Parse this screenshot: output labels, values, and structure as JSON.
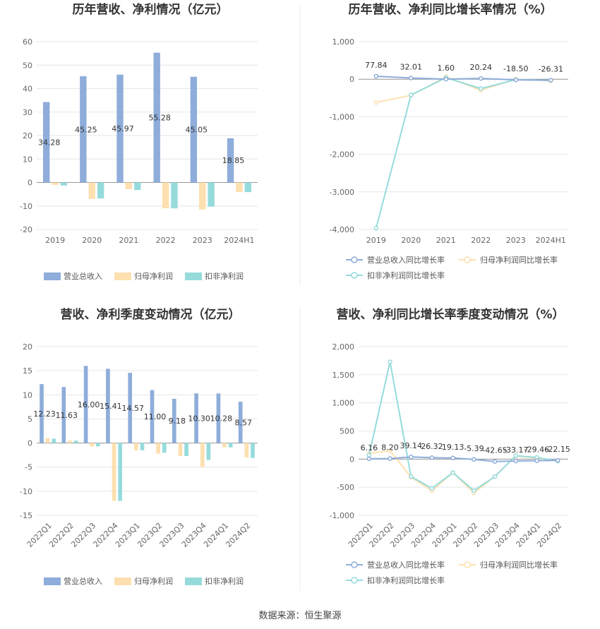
{
  "source": "数据来源：恒生聚源",
  "colors": {
    "rev": "#8eadda",
    "np": "#fde0af",
    "dnp": "#96dbdc",
    "grid": "#e6e6e6",
    "axis": "#999999"
  },
  "chart_data": [
    {
      "type": "bar",
      "title": "历年营收、净利情况（亿元）",
      "categories": [
        "2019",
        "2020",
        "2021",
        "2022",
        "2023",
        "2024H1"
      ],
      "ylim": [
        -20,
        60
      ],
      "yticks": [
        "-20",
        "-10",
        "0",
        "10",
        "20",
        "30",
        "40",
        "50",
        "60"
      ],
      "series": [
        {
          "name": "营业总收入",
          "values": [
            34.28,
            45.25,
            45.97,
            55.28,
            45.05,
            18.85
          ],
          "labels": [
            "34.28",
            "45.25",
            "45.97",
            "55.28",
            "45.05",
            "18.85"
          ]
        },
        {
          "name": "归母净利润",
          "values": [
            -1.0,
            -7.0,
            -2.8,
            -11.0,
            -11.5,
            -4.0
          ]
        },
        {
          "name": "扣非净利润",
          "values": [
            -1.3,
            -6.8,
            -3.2,
            -11.0,
            -10.3,
            -4.1
          ]
        }
      ]
    },
    {
      "type": "line",
      "title": "历年营收、净利同比增长率情况（%）",
      "categories": [
        "2019",
        "2020",
        "2021",
        "2022",
        "2023",
        "2024H1"
      ],
      "ylim": [
        -4000,
        1000
      ],
      "yticks": [
        "-4,000",
        "-3,000",
        "-2,000",
        "-1,000",
        "0",
        "1,000"
      ],
      "series": [
        {
          "name": "营业总收入同比增长率",
          "values": [
            77.84,
            32.01,
            1.6,
            20.24,
            -18.5,
            -26.31
          ],
          "labels": [
            "77.84",
            "32.01",
            "1.60",
            "20.24",
            "-18.50",
            "-26.31"
          ]
        },
        {
          "name": "归母净利润同比增长率",
          "values": [
            -620,
            -430,
            60,
            -290,
            0,
            -40
          ]
        },
        {
          "name": "扣非净利润同比增长率",
          "values": [
            -3970,
            -420,
            40,
            -250,
            -10,
            -30
          ]
        }
      ]
    },
    {
      "type": "bar",
      "title": "营收、净利季度变动情况（亿元）",
      "categories": [
        "2022Q1",
        "2022Q2",
        "2022Q3",
        "2022Q4",
        "2023Q1",
        "2023Q2",
        "2023Q3",
        "2023Q4",
        "2024Q1",
        "2024Q2"
      ],
      "ylim": [
        -15,
        20
      ],
      "yticks": [
        "-15",
        "-10",
        "-5",
        "0",
        "5",
        "10",
        "15",
        "20"
      ],
      "series": [
        {
          "name": "营业总收入",
          "values": [
            12.23,
            11.63,
            16.0,
            15.41,
            14.57,
            11.0,
            9.18,
            10.3,
            10.28,
            8.57
          ],
          "labels": [
            "12.23",
            "11.63",
            "16.00",
            "15.41",
            "14.57",
            "11.00",
            "9.18",
            "10.30",
            "10.28",
            "8.57"
          ]
        },
        {
          "name": "归母净利润",
          "values": [
            1.0,
            0.5,
            -0.7,
            -12.0,
            -1.5,
            -2.2,
            -2.7,
            -5.0,
            -0.9,
            -3.0
          ]
        },
        {
          "name": "扣非净利润",
          "values": [
            0.9,
            0.5,
            -0.7,
            -12.0,
            -1.5,
            -2.0,
            -2.7,
            -3.5,
            -0.9,
            -3.1
          ]
        }
      ]
    },
    {
      "type": "line",
      "title": "营收、净利同比增长率季度变动情况（%）",
      "categories": [
        "2022Q1",
        "2022Q2",
        "2022Q3",
        "2022Q4",
        "2023Q1",
        "2023Q2",
        "2023Q3",
        "2023Q4",
        "2024Q1",
        "2024Q2"
      ],
      "ylim": [
        -1000,
        2000
      ],
      "yticks": [
        "-1,000",
        "-500",
        "0",
        "500",
        "1,000",
        "1,500",
        "2,000"
      ],
      "series": [
        {
          "name": "营业总收入同比增长率",
          "values": [
            6.16,
            8.2,
            39.14,
            26.32,
            19.13,
            -5.39,
            -42.65,
            -33.17,
            -29.46,
            -22.15
          ],
          "labels": [
            "6.16",
            "8.20",
            "39.14",
            "26.32",
            "19.13",
            "-5.39",
            "-42.65",
            "-33.17",
            "-29.46",
            "-22.15"
          ]
        },
        {
          "name": "归母净利润同比增长率",
          "values": [
            100,
            150,
            -320,
            -560,
            -240,
            -600,
            -310,
            55,
            20,
            -35
          ]
        },
        {
          "name": "扣非净利润同比增长率",
          "values": [
            70,
            1730,
            -310,
            -520,
            -240,
            -560,
            -310,
            60,
            30,
            -35
          ]
        }
      ]
    }
  ]
}
